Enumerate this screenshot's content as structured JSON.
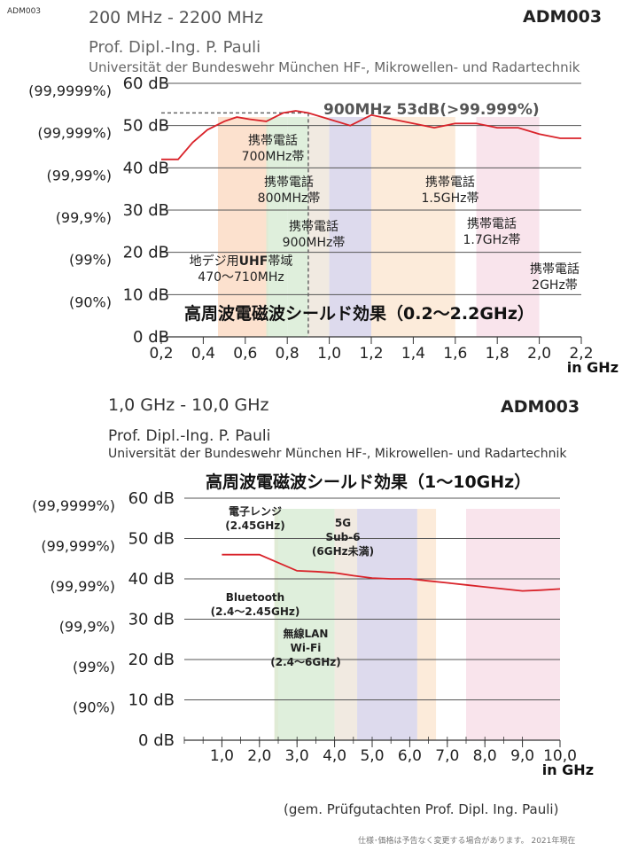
{
  "corner_label": "ADM003",
  "chart1_header": {
    "range": "200 MHz - 2200 MHz",
    "model": "ADM003",
    "author": "Prof. Dipl.-Ing. P. Pauli",
    "institute": "Universität der Bundeswehr München HF-, Mikrowellen- und Radartechnik"
  },
  "chart2_header": {
    "range": "1,0 GHz - 10,0 GHz",
    "model": "ADM003",
    "author": "Prof. Dipl.-Ing. P. Pauli",
    "institute": "Universität der Bundeswehr München HF-, Mikrowellen- und Radartechnik",
    "title": "高周波電磁波シールド効果（1〜10GHz）"
  },
  "source_note": "(gem. Prüfgutachten Prof. Dipl. Ing. Pauli)",
  "footer_note": "仕様･価格は予告なく変更する場合があります。 2021年現在",
  "colors": {
    "curve": "#d9232a",
    "grid": "#555555",
    "orange": "#fbdcc6",
    "green": "#d9ecd6",
    "purple": "#d7d3ea",
    "pink": "#f8dfe9",
    "beige": "#efe6dc",
    "light_orange": "#fbe8d4"
  },
  "chart_data": [
    {
      "type": "line",
      "title": "高周波電磁波シールド効果（0.2〜2.2GHz）",
      "xlabel": "in GHz",
      "xlim": [
        0.2,
        2.2
      ],
      "ylim": [
        0,
        60
      ],
      "x_ticks": [
        "0,2",
        "0,4",
        "0,6",
        "0,8",
        "1,0",
        "1,2",
        "1,4",
        "1,6",
        "1,8",
        "2,0",
        "2,2"
      ],
      "y_ticks": [
        "0 dB",
        "10 dB",
        "20 dB",
        "30 dB",
        "40 dB",
        "50 dB",
        "60 dB"
      ],
      "y_percent_labels": [
        "(90%)",
        "(99%)",
        "(99,9%)",
        "(99,99%)",
        "(99,999%)",
        "(99,9999%)"
      ],
      "series": [
        {
          "x": [
            0.2,
            0.28,
            0.35,
            0.42,
            0.5,
            0.56,
            0.62,
            0.7,
            0.78,
            0.84,
            0.9,
            1.0,
            1.1,
            1.2,
            1.3,
            1.4,
            1.5,
            1.6,
            1.7,
            1.8,
            1.9,
            2.0,
            2.1,
            2.2
          ],
          "y": [
            42,
            42,
            46,
            49,
            51,
            52,
            51.5,
            51,
            53,
            53.5,
            53,
            51.5,
            50,
            52.5,
            51.5,
            50.5,
            49.5,
            50.5,
            50.5,
            49.5,
            49.5,
            48,
            47,
            47
          ]
        }
      ],
      "annotation": {
        "text": "900MHz 53dB(>99.999%)",
        "x": 0.9,
        "y": 53
      },
      "bands": [
        {
          "label_lines": [
            "地デジ用",
            "UHF",
            "帯域",
            "470〜710MHz"
          ],
          "x_start": 0.47,
          "x_end": 0.71,
          "color": "orange"
        },
        {
          "label_lines": [
            "携帯電話",
            "700MHz帯"
          ],
          "x_start": 0.7,
          "x_end": 0.8,
          "color": "green"
        },
        {
          "label_lines": [
            "携帯電話",
            "800MHz帯"
          ],
          "x_start": 0.8,
          "x_end": 0.9,
          "color": "green"
        },
        {
          "label_lines": [
            "携帯電話",
            "900MHz帯"
          ],
          "x_start": 0.9,
          "x_end": 1.0,
          "color": "beige"
        },
        {
          "label_lines": [
            "携帯電話",
            "1.5GHz帯"
          ],
          "x_start": 1.0,
          "x_end": 1.2,
          "color": "purple"
        },
        {
          "label_lines": [
            "携帯電話",
            "1.7GHz帯"
          ],
          "x_start": 1.2,
          "x_end": 1.6,
          "color": "light_orange"
        },
        {
          "label_lines": [
            "携帯電話",
            "2GHz帯"
          ],
          "x_start": 1.7,
          "x_end": 2.0,
          "color": "pink"
        }
      ]
    },
    {
      "type": "line",
      "title": "",
      "xlabel": "in GHz",
      "xlim": [
        0.0,
        10.0
      ],
      "ylim": [
        0,
        60
      ],
      "x_ticks": [
        "1,0",
        "2,0",
        "3,0",
        "4,0",
        "5,0",
        "6,0",
        "7,0",
        "8,0",
        "9,0",
        "10,0"
      ],
      "y_ticks": [
        "0 dB",
        "10 dB",
        "20 dB",
        "30 dB",
        "40 dB",
        "50 dB",
        "60 dB"
      ],
      "y_percent_labels": [
        "(90%)",
        "(99%)",
        "(99,9%)",
        "(99,99%)",
        "(99,999%)",
        "(99,9999%)"
      ],
      "series": [
        {
          "x": [
            1.0,
            1.5,
            2.0,
            2.5,
            3.0,
            3.5,
            4.0,
            4.5,
            5.0,
            5.5,
            6.0,
            6.5,
            7.0,
            7.5,
            8.0,
            8.5,
            9.0,
            9.5,
            10.0
          ],
          "y": [
            46,
            46,
            46,
            44,
            42,
            41.8,
            41.5,
            40.8,
            40.2,
            40,
            40,
            39.5,
            39,
            38.5,
            38,
            37.5,
            37,
            37.2,
            37.5
          ]
        }
      ],
      "bands": [
        {
          "label_lines": [
            "電子レンジ",
            "(2.45GHz)"
          ],
          "x_start": 2.4,
          "x_end": 2.5,
          "color": "orange"
        },
        {
          "label_lines": [
            "Bluetooth",
            "(2.4〜2.45GHz)"
          ],
          "x_start": 2.4,
          "x_end": 4.0,
          "color": "green"
        },
        {
          "label_lines": [
            "無線LAN",
            "Wi-Fi",
            "(2.4〜6GHz)"
          ],
          "x_start": 4.0,
          "x_end": 4.6,
          "color": "beige"
        },
        {
          "label_lines": [
            "5G",
            "Sub-6",
            "(6GHz未満)"
          ],
          "x_start": 4.6,
          "x_end": 6.2,
          "color": "purple"
        },
        {
          "label_lines": [],
          "x_start": 6.2,
          "x_end": 6.7,
          "color": "light_orange"
        },
        {
          "label_lines": [],
          "x_start": 7.5,
          "x_end": 10.0,
          "color": "pink"
        }
      ]
    }
  ]
}
